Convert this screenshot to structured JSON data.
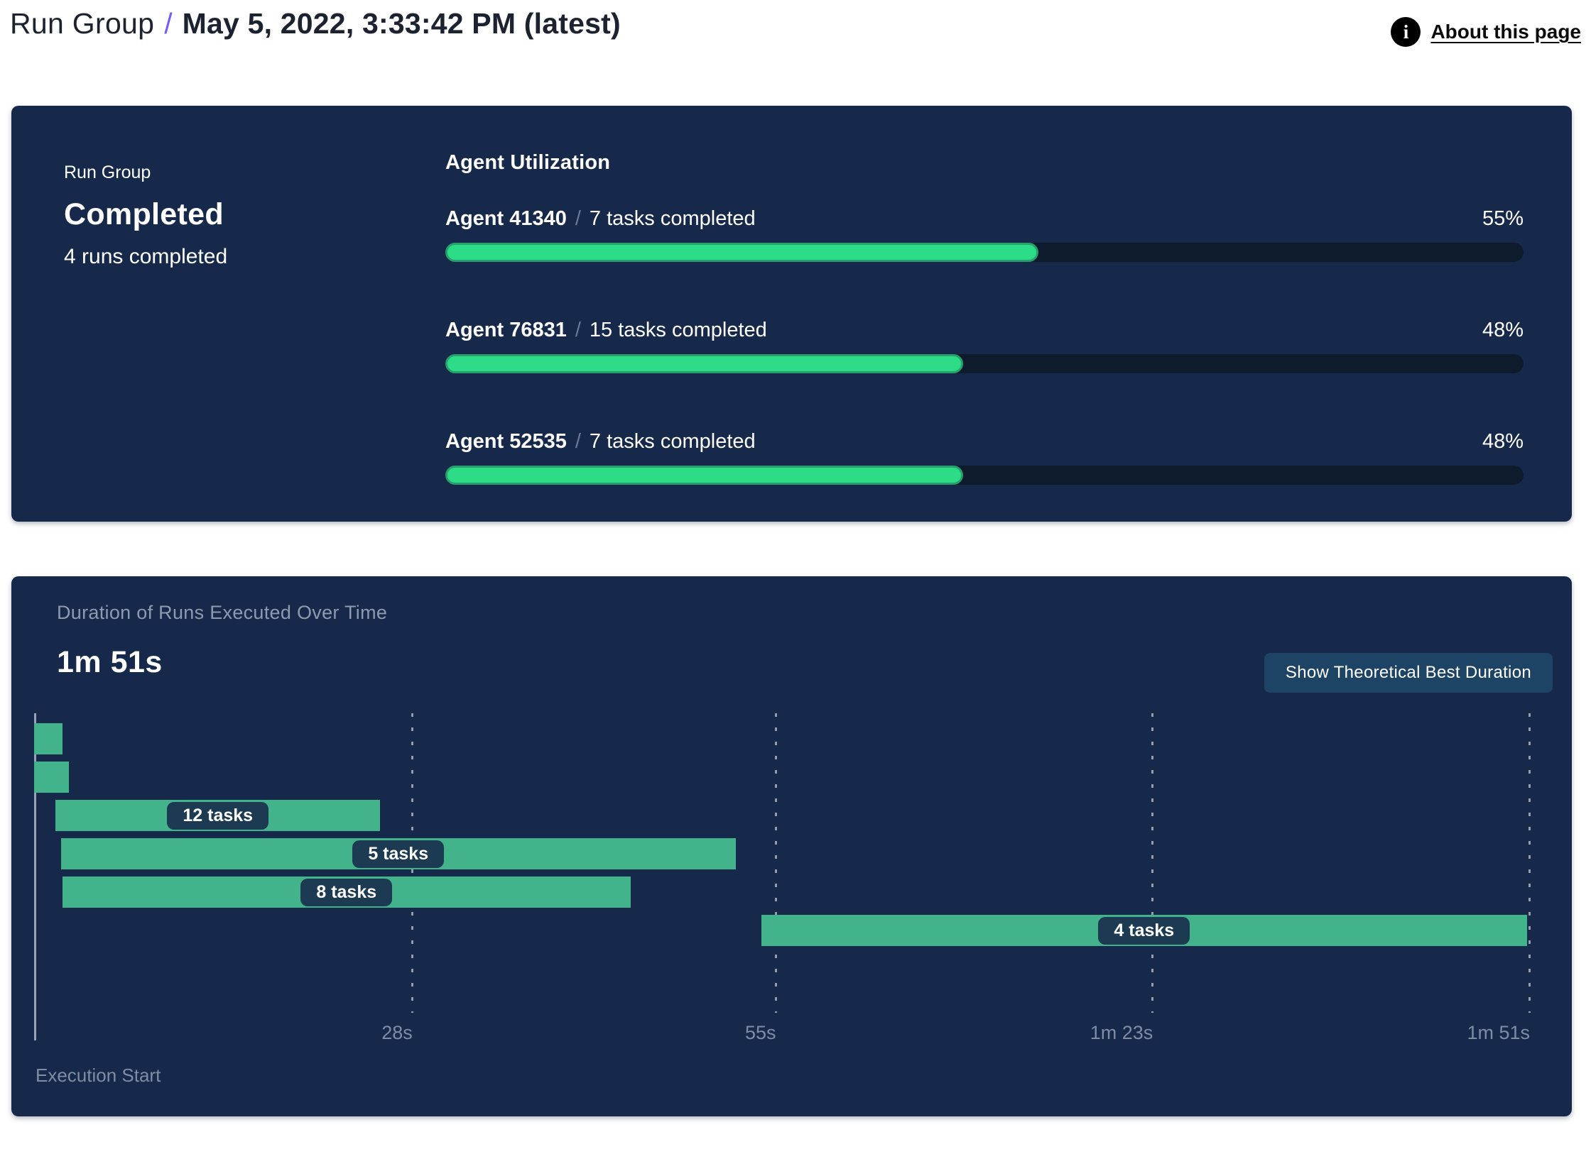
{
  "header": {
    "breadcrumb_root": "Run Group",
    "separator": "/",
    "title": "May 5, 2022, 3:33:42 PM (latest)",
    "about_link": "About this page",
    "accent_color": "#7a5af5"
  },
  "summary_panel": {
    "label": "Run Group",
    "status": "Completed",
    "subtext": "4 runs completed"
  },
  "agent_utilization": {
    "title": "Agent Utilization",
    "separator": "/",
    "fill_color": "#2cdc86",
    "track_color": "#0d1b2d",
    "agents": [
      {
        "name": "Agent 41340",
        "tasks": "7 tasks completed",
        "percent": 55,
        "percent_label": "55%"
      },
      {
        "name": "Agent 76831",
        "tasks": "15 tasks completed",
        "percent": 48,
        "percent_label": "48%"
      },
      {
        "name": "Agent 52535",
        "tasks": "7 tasks completed",
        "percent": 48,
        "percent_label": "48%"
      }
    ]
  },
  "duration_panel": {
    "title": "Duration of Runs Executed Over Time",
    "total_duration": "1m 51s",
    "button_label": "Show Theoretical Best Duration",
    "execution_start_label": "Execution Start"
  },
  "chart_data": {
    "type": "gantt",
    "title": "Duration of Runs Executed Over Time",
    "xlabel": "Execution Start",
    "total_duration_s": 111,
    "bar_color": "#42b38a",
    "label_pill_color": "#1c3a52",
    "axis_ticks": [
      {
        "label": "28s",
        "s": 28
      },
      {
        "label": "55s",
        "s": 55
      },
      {
        "label": "1m 23s",
        "s": 83
      },
      {
        "label": "1m 51s",
        "s": 111
      }
    ],
    "bars": [
      {
        "start_s": 0,
        "end_s": 2.1,
        "label": ""
      },
      {
        "start_s": 0,
        "end_s": 2.6,
        "label": ""
      },
      {
        "start_s": 1.6,
        "end_s": 25.7,
        "label": "12 tasks"
      },
      {
        "start_s": 2.0,
        "end_s": 52.1,
        "label": "5 tasks"
      },
      {
        "start_s": 2.1,
        "end_s": 44.3,
        "label": "8 tasks"
      },
      {
        "start_s": 54.0,
        "end_s": 110.9,
        "label": "4 tasks"
      }
    ]
  }
}
